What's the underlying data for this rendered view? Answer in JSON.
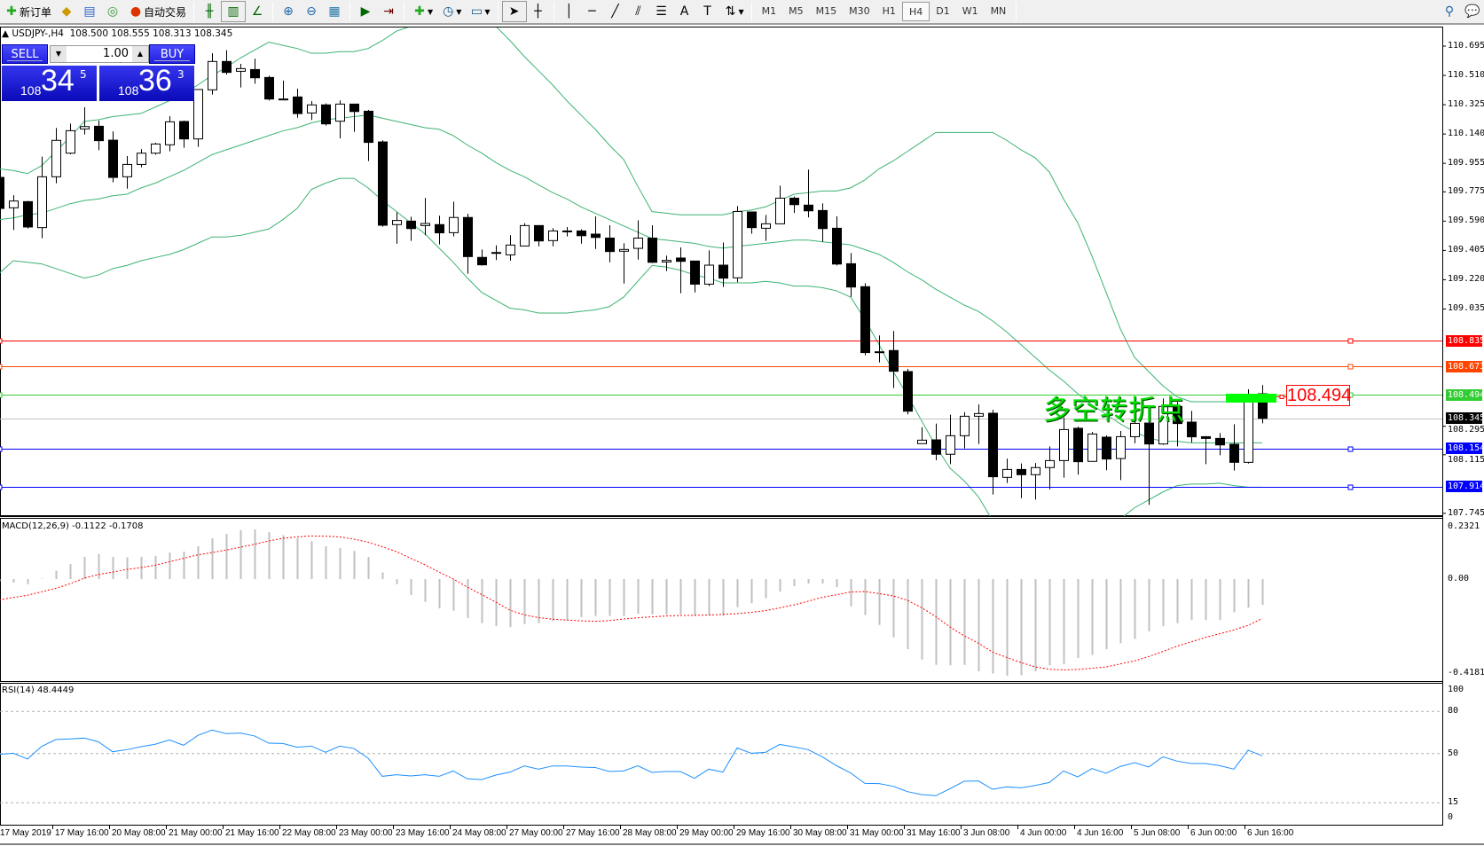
{
  "toolbar": {
    "new_order": "新订单",
    "auto_trading": "自动交易",
    "timeframes": [
      "M1",
      "M5",
      "M15",
      "M30",
      "H1",
      "H4",
      "D1",
      "W1",
      "MN"
    ],
    "active_timeframe": "H4"
  },
  "chart": {
    "title": "USDJPY-,H4  108.500 108.555 108.313 108.345",
    "annotation": "多空转折点",
    "annotation_price": "108.494",
    "price_ticks": [
      "110.695",
      "110.510",
      "110.325",
      "110.140",
      "109.955",
      "109.775",
      "109.590",
      "109.405",
      "109.220",
      "109.035",
      "108.295",
      "108.115",
      "107.745"
    ],
    "hlines": [
      {
        "price": "108.835",
        "color": "#ff0000"
      },
      {
        "price": "108.673",
        "color": "#ff4500"
      },
      {
        "price": "108.494",
        "color": "#32cd32"
      },
      {
        "price": "108.345",
        "color": "#000000"
      },
      {
        "price": "108.154",
        "color": "#0000ff"
      },
      {
        "price": "107.914",
        "color": "#0000ff"
      }
    ],
    "bands_color": "#3cb371",
    "candles": [
      [
        109.866,
        109.87,
        109.66,
        109.67
      ],
      [
        109.674,
        109.754,
        109.534,
        109.717
      ],
      [
        109.713,
        109.717,
        109.543,
        109.553
      ],
      [
        109.549,
        109.997,
        109.482,
        109.87
      ],
      [
        109.87,
        110.178,
        109.829,
        110.1
      ],
      [
        110.019,
        110.206,
        110.012,
        110.161
      ],
      [
        110.172,
        110.309,
        110.137,
        110.187
      ],
      [
        110.189,
        110.225,
        110.038,
        110.098
      ],
      [
        110.101,
        110.157,
        109.835,
        109.866
      ],
      [
        109.87,
        110.001,
        109.795,
        109.948
      ],
      [
        109.948,
        110.045,
        109.93,
        110.019
      ],
      [
        110.019,
        110.085,
        110.01,
        110.077
      ],
      [
        110.072,
        110.253,
        110.031,
        110.217
      ],
      [
        110.219,
        110.225,
        110.053,
        110.109
      ],
      [
        110.109,
        110.421,
        110.059,
        110.421
      ],
      [
        110.419,
        110.65,
        110.389,
        110.598
      ],
      [
        110.598,
        110.669,
        110.516,
        110.529
      ],
      [
        110.536,
        110.583,
        110.434,
        110.553
      ],
      [
        110.547,
        110.616,
        110.458,
        110.495
      ],
      [
        110.497,
        110.508,
        110.352,
        110.361
      ],
      [
        110.361,
        110.477,
        110.361,
        110.361
      ],
      [
        110.374,
        110.426,
        110.243,
        110.269
      ],
      [
        110.273,
        110.348,
        110.228,
        110.324
      ],
      [
        110.324,
        110.333,
        110.193,
        110.204
      ],
      [
        110.221,
        110.352,
        110.113,
        110.329
      ],
      [
        110.329,
        110.329,
        110.154,
        110.282
      ],
      [
        110.284,
        110.292,
        109.969,
        110.087
      ],
      [
        110.09,
        110.1,
        109.555,
        109.564
      ],
      [
        109.568,
        109.646,
        109.447,
        109.594
      ],
      [
        109.59,
        109.618,
        109.465,
        109.543
      ],
      [
        109.562,
        109.736,
        109.501,
        109.575
      ],
      [
        109.568,
        109.624,
        109.443,
        109.516
      ],
      [
        109.517,
        109.713,
        109.493,
        109.613
      ],
      [
        109.613,
        109.637,
        109.258,
        109.366
      ],
      [
        109.361,
        109.411,
        109.31,
        109.314
      ],
      [
        109.392,
        109.437,
        109.344,
        109.392
      ],
      [
        109.377,
        109.502,
        109.34,
        109.439
      ],
      [
        109.433,
        109.577,
        109.433,
        109.562
      ],
      [
        109.562,
        109.562,
        109.431,
        109.465
      ],
      [
        109.467,
        109.545,
        109.431,
        109.528
      ],
      [
        109.528,
        109.553,
        109.493,
        109.528
      ],
      [
        109.528,
        109.538,
        109.448,
        109.498
      ],
      [
        109.508,
        109.62,
        109.414,
        109.487
      ],
      [
        109.483,
        109.564,
        109.33,
        109.398
      ],
      [
        109.4,
        109.45,
        109.196,
        109.411
      ],
      [
        109.418,
        109.595,
        109.347,
        109.483
      ],
      [
        109.483,
        109.564,
        109.325,
        109.33
      ],
      [
        109.332,
        109.372,
        109.275,
        109.342
      ],
      [
        109.357,
        109.424,
        109.135,
        109.336
      ],
      [
        109.338,
        109.338,
        109.14,
        109.192
      ],
      [
        109.192,
        109.405,
        109.179,
        109.312
      ],
      [
        109.312,
        109.455,
        109.174,
        109.23
      ],
      [
        109.232,
        109.685,
        109.204,
        109.651
      ],
      [
        109.648,
        109.651,
        109.51,
        109.549
      ],
      [
        109.545,
        109.629,
        109.465,
        109.573
      ],
      [
        109.573,
        109.814,
        109.573,
        109.735
      ],
      [
        109.735,
        109.745,
        109.642,
        109.694
      ],
      [
        109.691,
        109.915,
        109.614,
        109.655
      ],
      [
        109.657,
        109.702,
        109.459,
        109.543
      ],
      [
        109.545,
        109.62,
        109.31,
        109.319
      ],
      [
        109.321,
        109.388,
        109.112,
        109.174
      ],
      [
        109.176,
        109.198,
        108.743,
        108.76
      ],
      [
        108.765,
        108.868,
        108.698,
        108.765
      ],
      [
        108.773,
        108.896,
        108.536,
        108.642
      ],
      [
        108.64,
        108.657,
        108.37,
        108.39
      ],
      [
        108.185,
        108.289,
        108.185,
        108.207
      ],
      [
        108.209,
        108.312,
        108.08,
        108.118
      ],
      [
        108.118,
        108.368,
        108.056,
        108.235
      ],
      [
        108.235,
        108.383,
        108.155,
        108.358
      ],
      [
        108.358,
        108.433,
        108.183,
        108.375
      ],
      [
        108.377,
        108.399,
        107.864,
        107.976
      ],
      [
        107.972,
        108.09,
        107.937,
        108.022
      ],
      [
        108.022,
        108.06,
        107.841,
        107.989
      ],
      [
        107.989,
        108.063,
        107.832,
        108.034
      ],
      [
        108.034,
        108.168,
        107.897,
        108.078
      ],
      [
        108.078,
        108.349,
        107.97,
        108.274
      ],
      [
        108.282,
        108.293,
        107.989,
        108.071
      ],
      [
        108.073,
        108.259,
        108.073,
        108.246
      ],
      [
        108.226,
        108.237,
        108.017,
        108.088
      ],
      [
        108.091,
        108.265,
        107.955,
        108.229
      ],
      [
        108.229,
        108.373,
        108.187,
        108.313
      ],
      [
        108.315,
        108.336,
        107.799,
        108.183
      ],
      [
        108.183,
        108.47,
        108.177,
        108.42
      ],
      [
        108.42,
        108.448,
        108.168,
        108.312
      ],
      [
        108.321,
        108.392,
        108.192,
        108.228
      ],
      [
        108.229,
        108.233,
        108.056,
        108.218
      ],
      [
        108.218,
        108.252,
        108.112,
        108.177
      ],
      [
        108.181,
        108.308,
        108.015,
        108.067
      ],
      [
        108.067,
        108.528,
        108.06,
        108.457
      ],
      [
        108.5,
        108.555,
        108.313,
        108.345
      ]
    ],
    "bb_upper": [
      109.92,
      109.91,
      109.89,
      109.94,
      110.03,
      110.12,
      110.22,
      110.23,
      110.25,
      110.26,
      110.27,
      110.31,
      110.35,
      110.39,
      110.45,
      110.51,
      110.56,
      110.62,
      110.67,
      110.72,
      110.7,
      110.68,
      110.65,
      110.65,
      110.66,
      110.66,
      110.68,
      110.73,
      110.79,
      110.82,
      110.83,
      110.84,
      110.85,
      110.84,
      110.83,
      110.82,
      110.73,
      110.63,
      110.54,
      110.45,
      110.35,
      110.26,
      110.17,
      110.07,
      109.98,
      109.81,
      109.65,
      109.64,
      109.63,
      109.63,
      109.63,
      109.63,
      109.65,
      109.66,
      109.68,
      109.72,
      109.76,
      109.77,
      109.78,
      109.78,
      109.8,
      109.85,
      109.92,
      109.97,
      110.03,
      110.09,
      110.15,
      110.15,
      110.15,
      110.15,
      110.15,
      110.1,
      110.04,
      109.99,
      109.9,
      109.73,
      109.58,
      109.37,
      109.14,
      108.91,
      108.73,
      108.64,
      108.55,
      108.48,
      108.45,
      108.45,
      108.45,
      108.45,
      108.45,
      108.45
    ],
    "bb_middle": [
      109.6,
      109.61,
      109.63,
      109.64,
      109.67,
      109.7,
      109.72,
      109.73,
      109.75,
      109.76,
      109.8,
      109.83,
      109.87,
      109.91,
      109.96,
      110.01,
      110.04,
      110.07,
      110.1,
      110.13,
      110.16,
      110.18,
      110.21,
      110.23,
      110.24,
      110.25,
      110.26,
      110.24,
      110.22,
      110.2,
      110.18,
      110.17,
      110.13,
      110.07,
      110.02,
      109.96,
      109.91,
      109.87,
      109.82,
      109.77,
      109.73,
      109.68,
      109.64,
      109.6,
      109.56,
      109.52,
      109.48,
      109.47,
      109.46,
      109.45,
      109.43,
      109.42,
      109.43,
      109.44,
      109.45,
      109.46,
      109.47,
      109.47,
      109.46,
      109.45,
      109.44,
      109.41,
      109.38,
      109.33,
      109.27,
      109.22,
      109.16,
      109.11,
      109.06,
      109.02,
      108.96,
      108.89,
      108.81,
      108.73,
      108.65,
      108.58,
      108.5,
      108.43,
      108.37,
      108.31,
      108.26,
      108.22,
      108.2,
      108.2,
      108.19,
      108.19,
      108.19,
      108.19,
      108.19,
      108.19
    ],
    "bb_lower": [
      109.26,
      109.34,
      109.33,
      109.32,
      109.29,
      109.26,
      109.23,
      109.25,
      109.29,
      109.31,
      109.34,
      109.36,
      109.38,
      109.41,
      109.45,
      109.49,
      109.49,
      109.5,
      109.52,
      109.54,
      109.6,
      109.67,
      109.79,
      109.83,
      109.86,
      109.86,
      109.8,
      109.72,
      109.65,
      109.58,
      109.51,
      109.42,
      109.33,
      109.23,
      109.14,
      109.09,
      109.04,
      109.03,
      109.01,
      109.01,
      109.01,
      109.02,
      109.03,
      109.05,
      109.11,
      109.21,
      109.31,
      109.3,
      109.28,
      109.25,
      109.23,
      109.2,
      109.2,
      109.2,
      109.21,
      109.2,
      109.18,
      109.18,
      109.17,
      109.15,
      109.11,
      108.97,
      108.81,
      108.64,
      108.49,
      108.33,
      108.17,
      108.03,
      107.95,
      107.85,
      107.7,
      107.62,
      107.55,
      107.51,
      107.48,
      107.45,
      107.47,
      107.5,
      107.6,
      107.71,
      107.78,
      107.83,
      107.88,
      107.92,
      107.93,
      107.93,
      107.935,
      107.92,
      107.91,
      107.91
    ]
  },
  "oneclick": {
    "sell_label": "SELL",
    "buy_label": "BUY",
    "lot": "1.00",
    "sell_prefix": "108",
    "sell_big": "34",
    "sell_sup": "5",
    "buy_prefix": "108",
    "buy_big": "36",
    "buy_sup": "3"
  },
  "macd": {
    "label": "MACD(12,26,9) -0.1122 -0.1708",
    "ticks": [
      "0.2321",
      "0.00",
      "-0.4181"
    ],
    "hist_color": "#c0c0c0",
    "signal_color": "#ff0000",
    "hist": [
      -0.01,
      -0.015,
      -0.022,
      0.002,
      0.036,
      0.065,
      0.096,
      0.109,
      0.096,
      0.094,
      0.096,
      0.1,
      0.115,
      0.119,
      0.142,
      0.177,
      0.196,
      0.212,
      0.215,
      0.203,
      0.19,
      0.177,
      0.164,
      0.142,
      0.135,
      0.122,
      0.096,
      0.029,
      -0.022,
      -0.069,
      -0.099,
      -0.127,
      -0.137,
      -0.169,
      -0.191,
      -0.204,
      -0.208,
      -0.195,
      -0.191,
      -0.182,
      -0.178,
      -0.165,
      -0.16,
      -0.16,
      -0.16,
      -0.15,
      -0.153,
      -0.153,
      -0.153,
      -0.16,
      -0.156,
      -0.16,
      -0.122,
      -0.105,
      -0.083,
      -0.054,
      -0.031,
      -0.019,
      -0.019,
      -0.035,
      -0.118,
      -0.156,
      -0.199,
      -0.253,
      -0.304,
      -0.349,
      -0.372,
      -0.374,
      -0.372,
      -0.4,
      -0.41,
      -0.419,
      -0.417,
      -0.4,
      -0.374,
      -0.368,
      -0.342,
      -0.329,
      -0.304,
      -0.278,
      -0.259,
      -0.227,
      -0.204,
      -0.191,
      -0.178,
      -0.178,
      -0.178,
      -0.144,
      -0.124,
      -0.112
    ],
    "signal": [
      -0.09,
      -0.08,
      -0.07,
      -0.055,
      -0.04,
      -0.02,
      0.004,
      0.02,
      0.03,
      0.042,
      0.05,
      0.06,
      0.075,
      0.09,
      0.105,
      0.115,
      0.126,
      0.138,
      0.151,
      0.165,
      0.177,
      0.183,
      0.187,
      0.186,
      0.183,
      0.173,
      0.16,
      0.14,
      0.119,
      0.09,
      0.062,
      0.03,
      0,
      -0.035,
      -0.067,
      -0.1,
      -0.135,
      -0.155,
      -0.167,
      -0.174,
      -0.178,
      -0.181,
      -0.183,
      -0.18,
      -0.173,
      -0.168,
      -0.164,
      -0.16,
      -0.158,
      -0.157,
      -0.156,
      -0.153,
      -0.15,
      -0.144,
      -0.137,
      -0.125,
      -0.112,
      -0.096,
      -0.079,
      -0.068,
      -0.056,
      -0.054,
      -0.063,
      -0.073,
      -0.092,
      -0.124,
      -0.163,
      -0.208,
      -0.246,
      -0.278,
      -0.317,
      -0.34,
      -0.362,
      -0.381,
      -0.391,
      -0.394,
      -0.392,
      -0.387,
      -0.381,
      -0.368,
      -0.355,
      -0.336,
      -0.314,
      -0.291,
      -0.272,
      -0.253,
      -0.237,
      -0.221,
      -0.201,
      -0.171
    ]
  },
  "rsi": {
    "label": "RSI(14) 48.4449",
    "ticks": [
      "100",
      "80",
      "50",
      "15",
      "0"
    ],
    "color": "#1e90ff",
    "values": [
      49.4,
      50.2,
      46.1,
      55.1,
      60.0,
      60.4,
      61.0,
      58.3,
      51.3,
      52.8,
      54.9,
      56.6,
      59.7,
      55.9,
      62.9,
      66.7,
      64.2,
      64.6,
      62.5,
      57.4,
      57.2,
      54.5,
      55.3,
      50.9,
      55.3,
      53.6,
      46.7,
      33.8,
      34.9,
      34.1,
      34.9,
      33.8,
      37.6,
      32.0,
      31.5,
      34.7,
      36.8,
      41.2,
      38.9,
      41.2,
      41.2,
      40.4,
      40.1,
      37.2,
      37.6,
      41.3,
      36.6,
      37.2,
      37.2,
      32.4,
      38.9,
      36.8,
      54.0,
      50.2,
      50.9,
      56.5,
      54.7,
      52.8,
      47.7,
      41.4,
      36.2,
      28.8,
      28.6,
      26.7,
      22.9,
      20.8,
      20.0,
      25.0,
      30.3,
      30.5,
      24.6,
      26.3,
      25.6,
      27.3,
      29.4,
      37.6,
      33.4,
      39.3,
      36.0,
      40.8,
      43.5,
      40.4,
      47.7,
      44.6,
      42.9,
      42.9,
      41.4,
      38.9,
      52.4,
      48.4
    ]
  },
  "time_axis": [
    "17 May 2019",
    "17 May 16:00",
    "20 May 08:00",
    "21 May 00:00",
    "21 May 16:00",
    "22 May 08:00",
    "23 May 00:00",
    "23 May 16:00",
    "24 May 08:00",
    "27 May 00:00",
    "27 May 16:00",
    "28 May 08:00",
    "29 May 00:00",
    "29 May 16:00",
    "30 May 08:00",
    "31 May 00:00",
    "31 May 16:00",
    "3 Jun 08:00",
    "4 Jun 00:00",
    "4 Jun 16:00",
    "5 Jun 08:00",
    "6 Jun 00:00",
    "6 Jun 16:00"
  ]
}
